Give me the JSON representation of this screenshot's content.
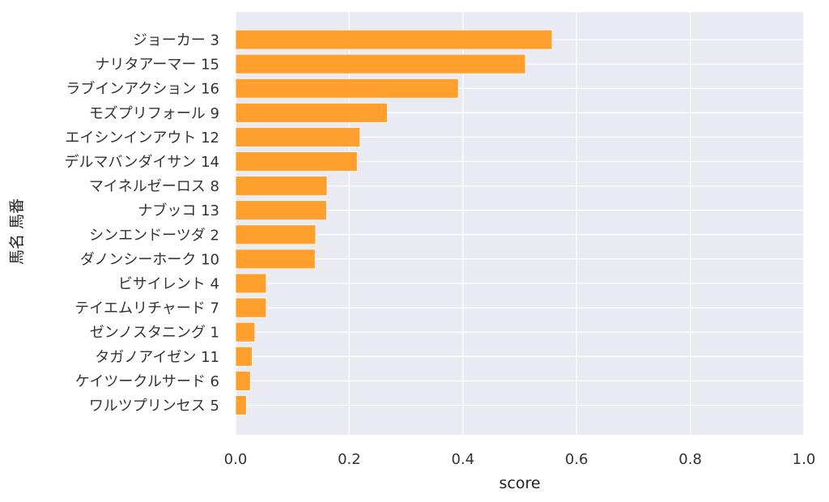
{
  "chart_data": {
    "type": "bar",
    "orientation": "horizontal",
    "categories": [
      "ジョーカー 3",
      "ナリタアーマー 15",
      "ラブインアクション 16",
      "モズプリフォール 9",
      "エイシンインアウト 12",
      "デルマバンダイサン 14",
      "マイネルゼーロス 8",
      "ナブッコ 13",
      "シンエンドーツダ 2",
      "ダノンシーホーク 10",
      "ビサイレント 4",
      "テイエムリチャード 7",
      "ゼンノスタニング 1",
      "タガノアイゼン 11",
      "ケイツークルサード 6",
      "ワルツプリンセス 5"
    ],
    "values": [
      0.557,
      0.51,
      0.392,
      0.267,
      0.219,
      0.214,
      0.161,
      0.16,
      0.141,
      0.14,
      0.054,
      0.054,
      0.034,
      0.029,
      0.026,
      0.019
    ],
    "xlabel": "score",
    "ylabel": "馬名 馬番",
    "xlim": [
      0.0,
      1.0
    ],
    "xticks": [
      "0.0",
      "0.2",
      "0.4",
      "0.6",
      "0.8",
      "1.0"
    ],
    "grid": true,
    "colors": {
      "bar": "#ff9f2e",
      "background": "#eaeaf2",
      "grid": "#ffffff"
    }
  }
}
